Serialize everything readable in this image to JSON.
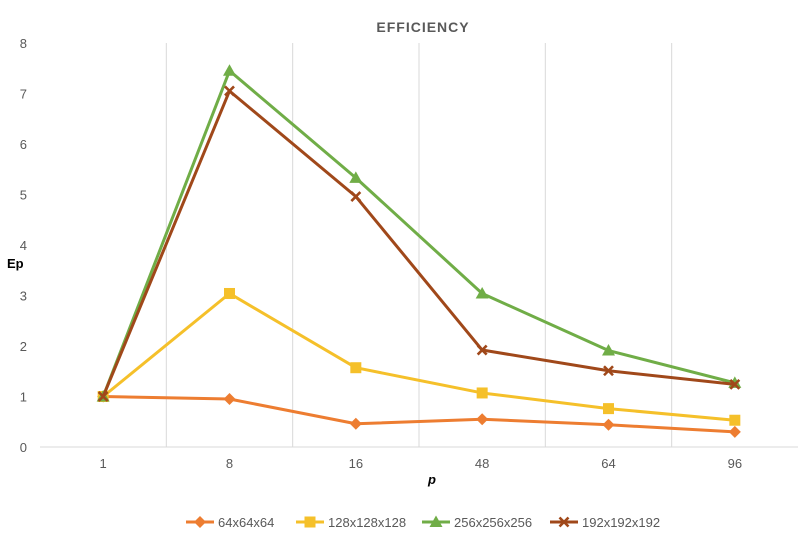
{
  "chart_data": {
    "type": "line",
    "title": "EFFICIENCY",
    "xlabel": "p",
    "ylabel": "Ep",
    "categories": [
      "1",
      "8",
      "16",
      "48",
      "64",
      "96"
    ],
    "ylim": [
      0,
      8
    ],
    "yticks": [
      0,
      1,
      2,
      3,
      4,
      5,
      6,
      7,
      8
    ],
    "grid": "vertical",
    "legend": "bottom",
    "series": [
      {
        "name": "64x64x64",
        "color": "#ED7D31",
        "marker": "diamond",
        "values": [
          1.0,
          0.95,
          0.46,
          0.55,
          0.44,
          0.3
        ]
      },
      {
        "name": "128x128x128",
        "color": "#F5C02A",
        "marker": "square",
        "values": [
          1.0,
          3.04,
          1.57,
          1.07,
          0.76,
          0.53
        ]
      },
      {
        "name": "256x256x256",
        "color": "#70AD47",
        "marker": "triangle",
        "values": [
          1.0,
          7.45,
          5.33,
          3.04,
          1.91,
          1.27
        ]
      },
      {
        "name": "192x192x192",
        "color": "#A0481A",
        "marker": "x",
        "values": [
          1.0,
          7.05,
          4.96,
          1.92,
          1.51,
          1.24
        ]
      }
    ]
  }
}
